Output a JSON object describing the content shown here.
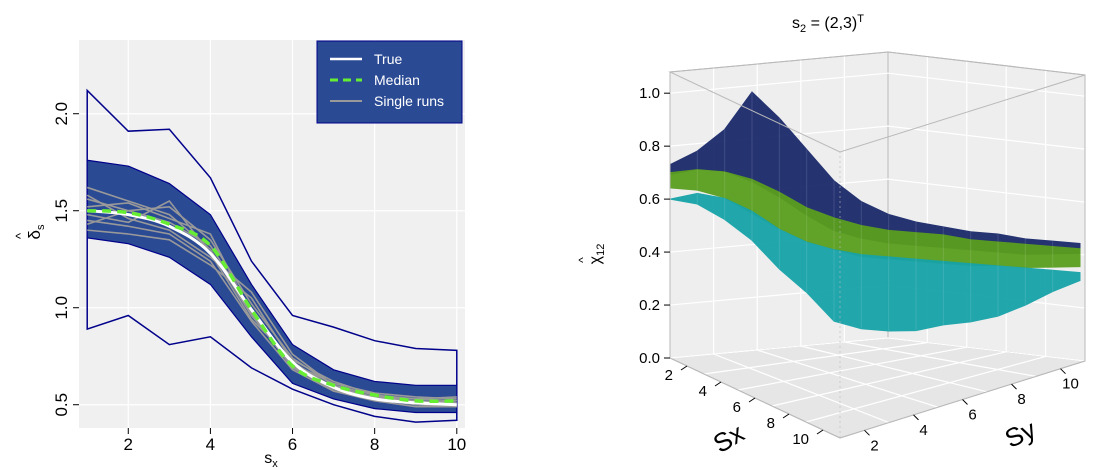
{
  "chart_data": [
    {
      "type": "line",
      "xlabel_main": "s",
      "xlabel_sub": "x",
      "ylabel_main": "δ",
      "ylabel_sub": "s",
      "ylabel_hat": "^",
      "xlim": [
        0.8,
        10.2
      ],
      "ylim": [
        0.38,
        2.38
      ],
      "xticks": [
        2,
        4,
        6,
        8,
        10
      ],
      "yticks": [
        0.5,
        1.0,
        1.5,
        2.0
      ],
      "ytick_labels": [
        "0.5",
        "1.0",
        "1.5",
        "2.0"
      ],
      "grid": true,
      "legend_position": "top-right",
      "legend": [
        {
          "label": "True",
          "style": "solid",
          "color": "#ffffff"
        },
        {
          "label": "Median",
          "style": "dashed",
          "color": "#66ee33"
        },
        {
          "label": "Single runs",
          "style": "solid",
          "color": "#999999"
        }
      ],
      "x": [
        1,
        2,
        3,
        4,
        5,
        6,
        7,
        8,
        9,
        10
      ],
      "band_outer": {
        "upper": [
          2.12,
          1.91,
          1.92,
          1.67,
          1.24,
          0.96,
          0.9,
          0.83,
          0.79,
          0.78
        ],
        "lower": [
          0.89,
          0.96,
          0.81,
          0.85,
          0.69,
          0.58,
          0.5,
          0.44,
          0.41,
          0.42
        ]
      },
      "band_inner": {
        "upper": [
          1.76,
          1.73,
          1.64,
          1.48,
          1.12,
          0.81,
          0.68,
          0.62,
          0.6,
          0.6
        ],
        "lower": [
          1.36,
          1.33,
          1.26,
          1.12,
          0.85,
          0.61,
          0.53,
          0.48,
          0.46,
          0.46
        ]
      },
      "series": [
        {
          "name": "True",
          "values": [
            1.5,
            1.48,
            1.42,
            1.28,
            0.99,
            0.72,
            0.59,
            0.53,
            0.51,
            0.5
          ]
        },
        {
          "name": "Median",
          "values": [
            1.5,
            1.49,
            1.43,
            1.32,
            0.99,
            0.7,
            0.6,
            0.55,
            0.52,
            0.52
          ]
        }
      ],
      "single_runs": [
        [
          1.56,
          1.5,
          1.52,
          1.35,
          1.02,
          0.74,
          0.6,
          0.55,
          0.53,
          0.52
        ],
        [
          1.45,
          1.42,
          1.38,
          1.24,
          0.93,
          0.68,
          0.57,
          0.52,
          0.49,
          0.49
        ],
        [
          1.62,
          1.55,
          1.48,
          1.3,
          0.96,
          0.71,
          0.61,
          0.56,
          0.54,
          0.53
        ],
        [
          1.4,
          1.38,
          1.35,
          1.22,
          1.05,
          0.72,
          0.59,
          0.54,
          0.51,
          0.5
        ],
        [
          1.52,
          1.54,
          1.46,
          1.38,
          0.97,
          0.69,
          0.58,
          0.53,
          0.52,
          0.51
        ],
        [
          1.48,
          1.44,
          1.55,
          1.28,
          0.94,
          0.73,
          0.62,
          0.55,
          0.51,
          0.52
        ],
        [
          1.58,
          1.46,
          1.4,
          1.26,
          1.08,
          0.76,
          0.6,
          0.53,
          0.5,
          0.49
        ],
        [
          1.43,
          1.5,
          1.44,
          1.32,
          0.99,
          0.7,
          0.57,
          0.54,
          0.53,
          0.54
        ]
      ],
      "colors": {
        "outer": "#00008b",
        "inner": "#2b4a94",
        "panel": "#f0f0f0",
        "grid": "#ffffff",
        "runs": "#999999",
        "true": "#ffffff",
        "median": "#66ee33"
      }
    },
    {
      "type": "surface3d",
      "title_main": "s",
      "title_sub": "2",
      "title_rest": " = (2,3)",
      "title_sup": "T",
      "zlabel_main": "χ",
      "zlabel_sub": "12",
      "zlabel_hat": "^",
      "xlabel": "Sx",
      "ylabel": "Sy",
      "zlim": [
        0,
        1.08
      ],
      "zticks": [
        0.0,
        0.2,
        0.4,
        0.6,
        0.8,
        1.0
      ],
      "ztick_labels": [
        "0.0",
        "0.2",
        "0.4",
        "0.6",
        "0.8",
        "1.0"
      ],
      "sx_ticks": [
        "2",
        "4",
        "6",
        "8",
        "10"
      ],
      "sy_ticks": [
        "2",
        "4",
        "6",
        "8",
        "10"
      ],
      "grid": true,
      "surfaces": [
        {
          "name_color": "#1b2a6b",
          "upper_profile": [
            0.73,
            0.78,
            0.86,
            1.0,
            0.9,
            0.78,
            0.66,
            0.58,
            0.53,
            0.5,
            0.48,
            0.46,
            0.45,
            0.43,
            0.42,
            0.41
          ],
          "lower_profile": [
            0.73,
            0.75,
            0.74,
            0.7,
            0.64,
            0.57,
            0.51,
            0.48,
            0.46,
            0.45,
            0.44,
            0.43,
            0.42,
            0.41,
            0.41,
            0.41
          ]
        },
        {
          "name_color": "#5a9e1e",
          "upper_profile": [
            0.7,
            0.71,
            0.7,
            0.67,
            0.62,
            0.56,
            0.52,
            0.49,
            0.47,
            0.46,
            0.45,
            0.43,
            0.42,
            0.41,
            0.4,
            0.39
          ],
          "lower_profile": [
            0.68,
            0.67,
            0.64,
            0.58,
            0.52,
            0.47,
            0.44,
            0.41,
            0.4,
            0.39,
            0.38,
            0.37,
            0.37,
            0.36,
            0.36,
            0.36
          ]
        },
        {
          "name_color": "#17a3a8",
          "upper_profile": [
            0.6,
            0.62,
            0.6,
            0.55,
            0.48,
            0.43,
            0.4,
            0.38,
            0.37,
            0.36,
            0.35,
            0.34,
            0.33,
            0.32,
            0.31,
            0.3
          ],
          "lower_profile": [
            0.6,
            0.58,
            0.52,
            0.44,
            0.33,
            0.24,
            0.13,
            0.1,
            0.09,
            0.09,
            0.11,
            0.12,
            0.14,
            0.18,
            0.23,
            0.27
          ]
        }
      ],
      "colors": {
        "box": "#b9b9b9",
        "floor": "#e6e6e6",
        "grid_line": "#ffffff"
      }
    }
  ]
}
